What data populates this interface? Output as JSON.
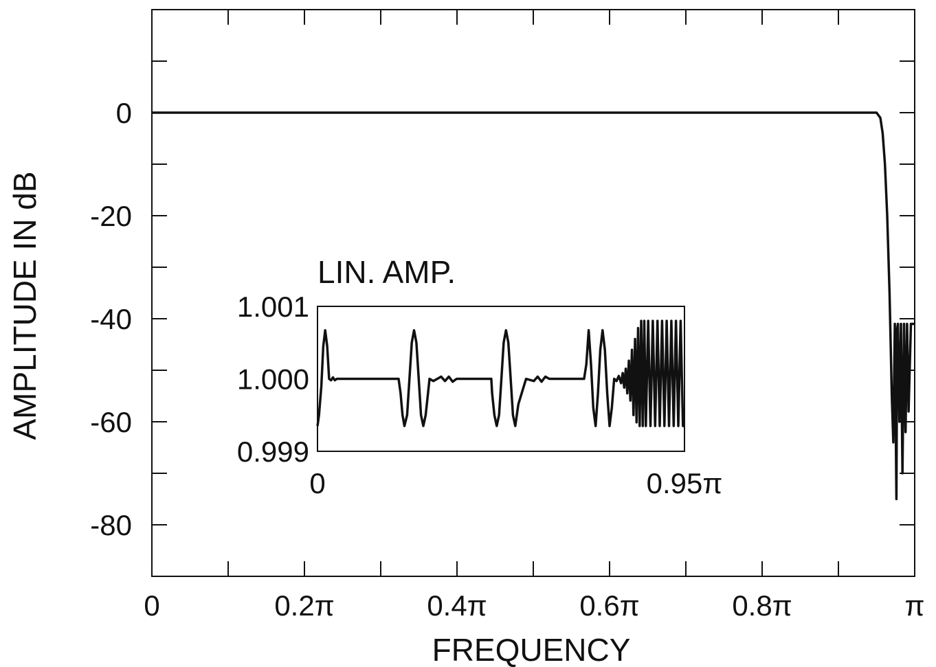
{
  "chart_data": [
    {
      "type": "line",
      "xlabel": "FREQUENCY",
      "ylabel": "AMPLITUDE IN dB",
      "xlim": [
        0,
        1
      ],
      "ylim": [
        -90,
        20
      ],
      "x_ticks": [
        {
          "value": 0,
          "label": "0"
        },
        {
          "value": 0.2,
          "label": "0.2π"
        },
        {
          "value": 0.4,
          "label": "0.4π"
        },
        {
          "value": 0.6,
          "label": "0.6π"
        },
        {
          "value": 0.8,
          "label": "0.8π"
        },
        {
          "value": 1.0,
          "label": "π"
        }
      ],
      "x_minor_ticks": [
        0.1,
        0.3,
        0.5,
        0.7,
        0.9
      ],
      "y_ticks": [
        {
          "value": 0,
          "label": "0"
        },
        {
          "value": -20,
          "label": "-20"
        },
        {
          "value": -40,
          "label": "-40"
        },
        {
          "value": -60,
          "label": "-60"
        },
        {
          "value": -80,
          "label": "-80"
        }
      ],
      "y_minor_ticks": [
        10,
        -10,
        -30,
        -50,
        -70
      ],
      "grid": false,
      "color": "#111111",
      "series": [
        {
          "x": [
            0,
            0.9,
            0.95,
            0.955,
            0.958,
            0.961,
            0.964,
            0.967,
            0.97,
            0.972,
            0.974,
            0.976,
            0.977,
            0.978,
            0.98,
            0.982,
            0.984,
            0.986,
            0.988,
            0.99,
            0.992,
            0.995,
            0.998,
            1.0
          ],
          "y": [
            0,
            0,
            0,
            -1,
            -4,
            -10,
            -20,
            -35,
            -55,
            -64,
            -41,
            -75,
            -42,
            -41,
            -60,
            -41,
            -70,
            -41,
            -62,
            -41,
            -58,
            -41,
            -41,
            -41
          ]
        }
      ]
    },
    {
      "type": "line",
      "title": "LIN. AMP.",
      "xlim": [
        0,
        0.95
      ],
      "ylim": [
        0.999,
        1.001
      ],
      "x_ticks": [
        {
          "value": 0,
          "label": "0"
        },
        {
          "value": 0.95,
          "label": "0.95π"
        }
      ],
      "y_ticks": [
        {
          "value": 1.001,
          "label": "1.001"
        },
        {
          "value": 1.0,
          "label": "1.000"
        },
        {
          "value": 0.999,
          "label": "0.999"
        }
      ],
      "grid": false,
      "color": "#111111",
      "series": [
        {
          "x": [
            0,
            0.004,
            0.01,
            0.015,
            0.02,
            0.025,
            0.03,
            0.035,
            0.04,
            0.045,
            0.05,
            0.06,
            0.08,
            0.1,
            0.12,
            0.14,
            0.16,
            0.18,
            0.2,
            0.21,
            0.215,
            0.22,
            0.225,
            0.232,
            0.238,
            0.244,
            0.25,
            0.256,
            0.262,
            0.268,
            0.274,
            0.28,
            0.286,
            0.29,
            0.3,
            0.32,
            0.33,
            0.34,
            0.35,
            0.36,
            0.38,
            0.4,
            0.41,
            0.42,
            0.43,
            0.44,
            0.45,
            0.452,
            0.458,
            0.464,
            0.47,
            0.476,
            0.482,
            0.488,
            0.494,
            0.5,
            0.506,
            0.512,
            0.52,
            0.54,
            0.56,
            0.57,
            0.58,
            0.59,
            0.6,
            0.62,
            0.66,
            0.68,
            0.69,
            0.696,
            0.702,
            0.708,
            0.714,
            0.72,
            0.726,
            0.732,
            0.738,
            0.744,
            0.75,
            0.756,
            0.762,
            0.768,
            0.774,
            0.78,
            0.786,
            0.79,
            0.794,
            0.798,
            0.802,
            0.806,
            0.81,
            0.814,
            0.818,
            0.822,
            0.826,
            0.83,
            0.834,
            0.838,
            0.842,
            0.846,
            0.85,
            0.856,
            0.862,
            0.868,
            0.874,
            0.88,
            0.886,
            0.892,
            0.898,
            0.904,
            0.91,
            0.916,
            0.922,
            0.928,
            0.934,
            0.94,
            0.946,
            0.95
          ],
          "y": [
            0.99935,
            0.9995,
            0.9999,
            1.00045,
            1.00067,
            1.00045,
            1.0,
            0.99998,
            1.00002,
            0.99998,
            1.0,
            1.0,
            1.0,
            1.0,
            1.0,
            1.0,
            1.0,
            1.0,
            1.0,
            1.0,
            0.9998,
            0.9995,
            0.99935,
            0.9995,
            1.0,
            1.0005,
            1.00067,
            1.0005,
            1.0,
            0.9995,
            0.99935,
            0.9995,
            0.9998,
            1.0,
            0.99997,
            1.00003,
            0.99997,
            1.00003,
            0.99996,
            1.0,
            1.0,
            1.0,
            1.0,
            1.0,
            1.0,
            1.0,
            1.0,
            0.9998,
            0.9995,
            0.99935,
            0.9995,
            1.0,
            1.0005,
            1.00067,
            1.0005,
            1.0,
            0.9995,
            0.99935,
            0.99965,
            1.0,
            0.99997,
            1.00003,
            0.99996,
            1.00003,
            1.0,
            1.0,
            1.0,
            1.0,
            1.0,
            1.0002,
            1.00067,
            1.0002,
            0.9996,
            0.99935,
            0.9998,
            1.0004,
            1.00067,
            1.0004,
            0.9998,
            0.99935,
            0.9996,
            1.0,
            0.99997,
            1.00004,
            0.99994,
            1.00008,
            0.99988,
            1.00014,
            0.9998,
            1.00025,
            0.9997,
            1.0004,
            0.9995,
            1.00055,
            0.9994,
            1.0007,
            0.99935,
            1.0008,
            0.99935,
            1.0008,
            0.99935,
            1.0008,
            0.99935,
            1.0008,
            0.99935,
            1.0008,
            0.99935,
            1.0008,
            0.99935,
            1.0008,
            0.99935,
            1.0008,
            0.99935,
            1.0008,
            0.99935,
            1.0008,
            0.99935,
            0.99935
          ]
        }
      ]
    }
  ]
}
